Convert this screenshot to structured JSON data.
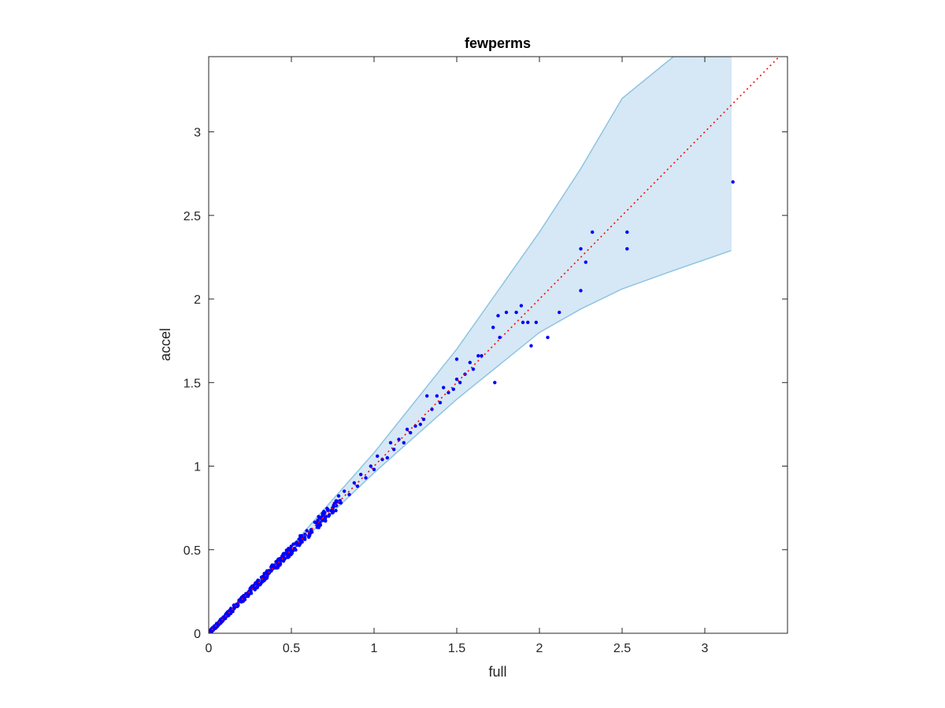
{
  "chart_data": {
    "type": "scatter",
    "title": "fewperms",
    "xlabel": "full",
    "ylabel": "accel",
    "xlim": [
      0,
      3.5
    ],
    "ylim": [
      0,
      3.45
    ],
    "xticks": [
      "0",
      "0.5",
      "1",
      "1.5",
      "2",
      "2.5",
      "3"
    ],
    "yticks": [
      "0",
      "0.5",
      "1",
      "1.5",
      "2",
      "2.5",
      "3"
    ],
    "grid": false,
    "colors": {
      "points": "#0000ff",
      "band_fill": "#d6e8f5",
      "band_edge": "#8fc3e3",
      "identity_line": "#ff0000",
      "axes": "#262626"
    },
    "identity_line": {
      "x": [
        0,
        3.5
      ],
      "y": [
        0,
        3.5
      ],
      "style": "dotted"
    },
    "band": {
      "x": [
        0,
        0.5,
        1.0,
        1.5,
        2.0,
        2.25,
        2.5,
        2.81,
        3.16
      ],
      "upper": [
        0,
        0.52,
        1.08,
        1.7,
        2.4,
        2.78,
        3.2,
        3.45,
        3.45
      ],
      "lower": [
        0,
        0.49,
        0.96,
        1.4,
        1.8,
        1.94,
        2.06,
        2.17,
        2.29
      ]
    },
    "scatter_explicit": [
      [
        3.17,
        2.7
      ],
      [
        2.53,
        2.4
      ],
      [
        2.53,
        2.3
      ],
      [
        2.32,
        2.4
      ],
      [
        2.28,
        2.22
      ],
      [
        2.25,
        2.3
      ],
      [
        2.25,
        2.05
      ],
      [
        2.12,
        1.92
      ],
      [
        2.05,
        1.77
      ],
      [
        1.98,
        1.86
      ],
      [
        1.95,
        1.72
      ],
      [
        1.93,
        1.86
      ],
      [
        1.9,
        1.86
      ],
      [
        1.89,
        1.96
      ],
      [
        1.86,
        1.92
      ],
      [
        1.8,
        1.92
      ],
      [
        1.76,
        1.77
      ],
      [
        1.75,
        1.9
      ],
      [
        1.73,
        1.5
      ],
      [
        1.72,
        1.83
      ],
      [
        1.65,
        1.66
      ],
      [
        1.63,
        1.66
      ],
      [
        1.6,
        1.58
      ],
      [
        1.58,
        1.62
      ],
      [
        1.55,
        1.55
      ],
      [
        1.52,
        1.5
      ],
      [
        1.5,
        1.64
      ],
      [
        1.5,
        1.52
      ],
      [
        1.48,
        1.46
      ],
      [
        1.45,
        1.44
      ],
      [
        1.42,
        1.47
      ],
      [
        1.4,
        1.38
      ],
      [
        1.38,
        1.42
      ],
      [
        1.35,
        1.34
      ],
      [
        1.32,
        1.42
      ],
      [
        1.3,
        1.28
      ],
      [
        1.28,
        1.25
      ],
      [
        1.25,
        1.24
      ],
      [
        1.22,
        1.2
      ],
      [
        1.2,
        1.22
      ],
      [
        1.18,
        1.14
      ],
      [
        1.15,
        1.16
      ],
      [
        1.12,
        1.1
      ],
      [
        1.1,
        1.14
      ],
      [
        1.08,
        1.05
      ],
      [
        1.05,
        1.04
      ],
      [
        1.02,
        1.06
      ],
      [
        1.0,
        0.98
      ],
      [
        0.98,
        1.0
      ],
      [
        0.95,
        0.93
      ],
      [
        0.92,
        0.95
      ],
      [
        0.9,
        0.88
      ],
      [
        0.88,
        0.9
      ],
      [
        0.85,
        0.83
      ],
      [
        0.82,
        0.85
      ],
      [
        0.8,
        0.78
      ]
    ],
    "scatter_dense": {
      "count": 420,
      "x_range": [
        0,
        0.8
      ],
      "spread": 0.035,
      "slope": 1.0
    }
  }
}
